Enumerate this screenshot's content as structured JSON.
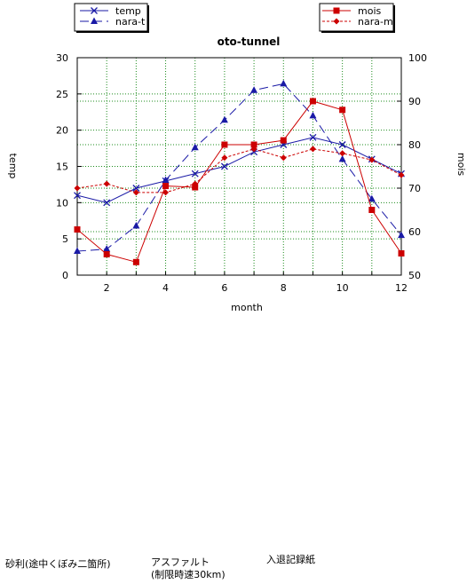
{
  "chart_data": {
    "type": "line",
    "title": "oto-tunnel",
    "xlabel": "month",
    "ylabel_left": "temp",
    "ylabel_right": "mois",
    "x": [
      1,
      2,
      3,
      4,
      5,
      6,
      7,
      8,
      9,
      10,
      11,
      12
    ],
    "x_ticks": [
      "2",
      "4",
      "6",
      "8",
      "10",
      "12"
    ],
    "y_left_ticks": [
      "0",
      "5",
      "10",
      "15",
      "20",
      "25",
      "30"
    ],
    "y_right_ticks": [
      "50",
      "60",
      "70",
      "80",
      "90",
      "100"
    ],
    "xlim": [
      1,
      12
    ],
    "ylim_left": [
      0,
      30
    ],
    "ylim_right": [
      50,
      100
    ],
    "grid": true,
    "series": [
      {
        "name": "temp",
        "axis": "left",
        "color": "#1a1aa6",
        "marker": "x",
        "dash": "solid",
        "values": [
          11,
          10,
          12,
          13,
          14,
          15,
          17,
          18,
          19,
          18,
          16,
          14
        ]
      },
      {
        "name": "nara-t",
        "axis": "left",
        "color": "#1a1aa6",
        "marker": "triangle",
        "dash": "long-dash",
        "values": [
          3.3,
          3.6,
          6.8,
          13.1,
          17.6,
          21.4,
          25.5,
          26.4,
          22.0,
          16.0,
          10.5,
          5.5
        ]
      },
      {
        "name": "mois",
        "axis": "right",
        "color": "#cc0000",
        "marker": "square",
        "dash": "solid",
        "values": [
          60.5,
          54.8,
          53.0,
          70.5,
          70.2,
          80.0,
          80.0,
          81.0,
          90.0,
          88.0,
          65.0,
          55.0
        ]
      },
      {
        "name": "nara-m",
        "axis": "right",
        "color": "#cc0000",
        "marker": "diamond",
        "dash": "short-dash",
        "values": [
          70.0,
          71.0,
          69.0,
          69.0,
          71.0,
          77.0,
          79.0,
          77.0,
          79.0,
          78.0,
          76.5,
          73.0
        ]
      }
    ],
    "legend_left": [
      "temp",
      "nara-t"
    ],
    "legend_right": [
      "mois",
      "nara-m"
    ]
  },
  "notes": {
    "gravel": "砂利(途中くぼみ二箇所)",
    "asphalt_line1": "アスファルト",
    "asphalt_line2": "(制限時速30km)",
    "entry_exit": "入退記録紙"
  }
}
